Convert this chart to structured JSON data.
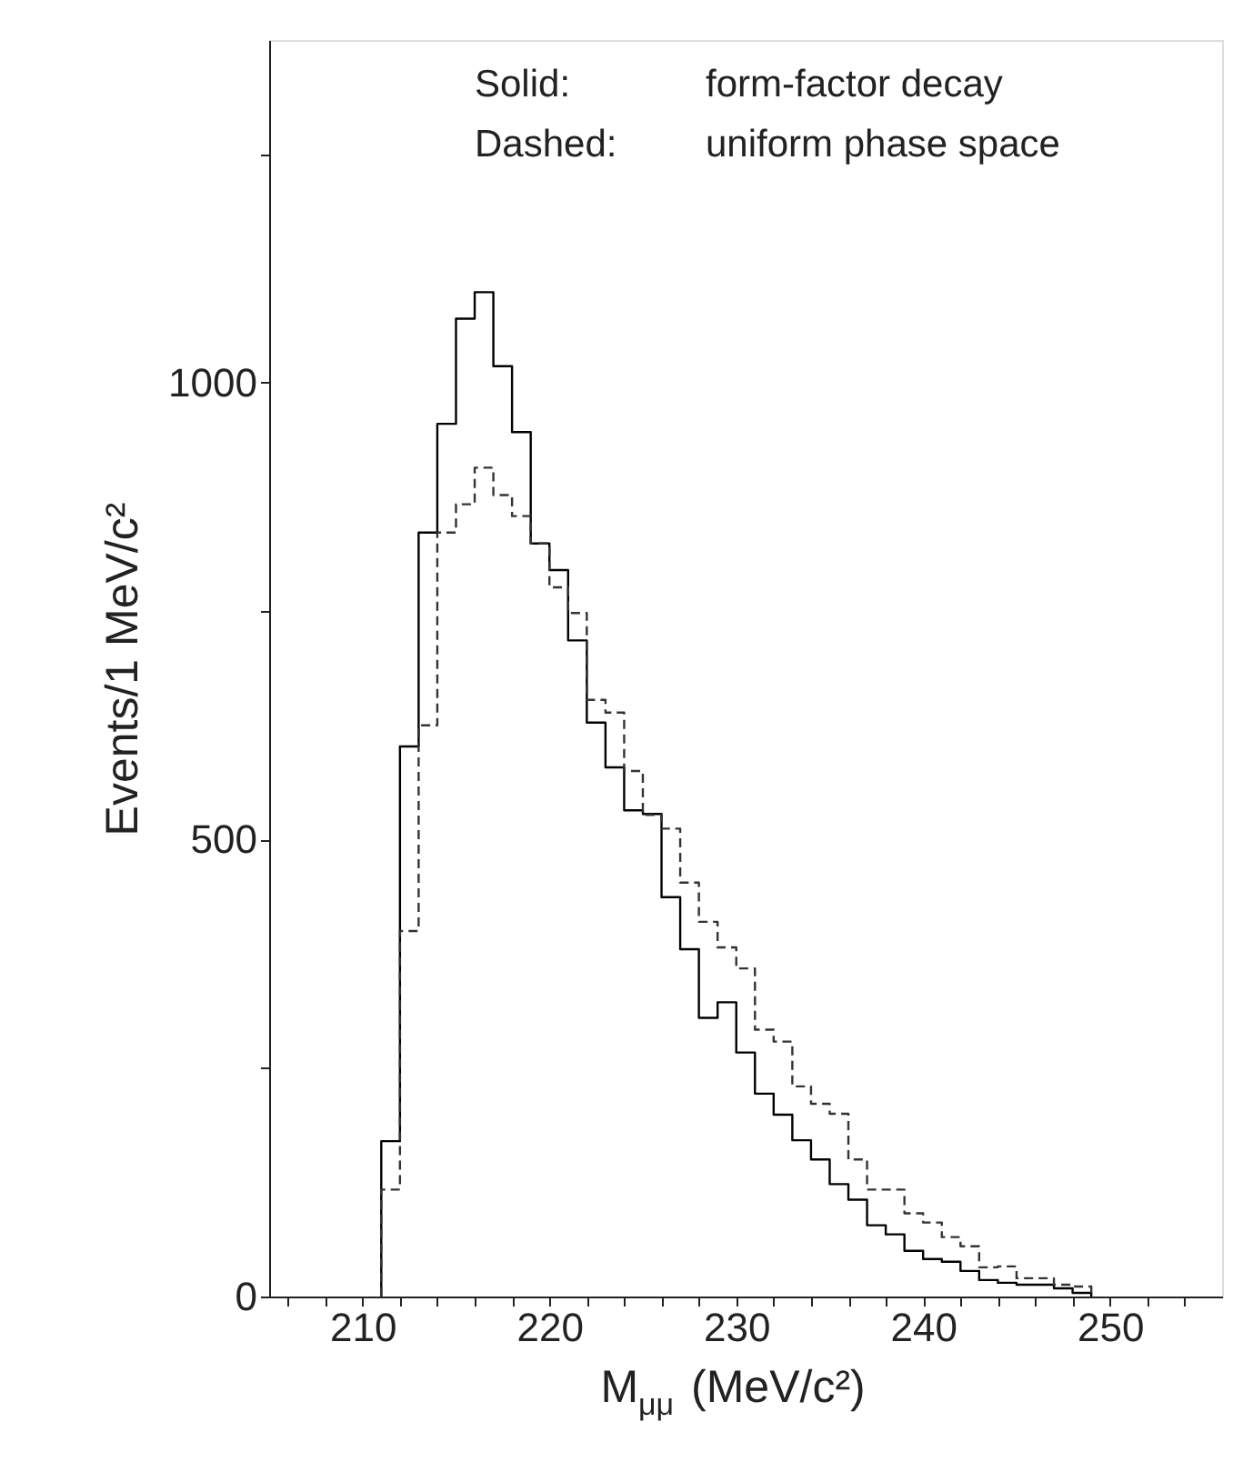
{
  "chart_data": {
    "type": "histogram",
    "xlabel": "M$_{μμ}$ (MeV/c²)",
    "ylabel": "Events/1 MeV/c²",
    "bins": [
      211,
      212,
      213,
      214,
      215,
      216,
      217,
      218,
      219,
      220,
      221,
      222,
      223,
      224,
      225,
      226,
      227,
      228,
      229,
      230,
      231,
      232,
      233,
      234,
      235,
      236,
      237,
      238,
      239,
      240,
      241,
      242,
      243,
      244,
      245,
      246,
      247,
      248,
      249
    ],
    "series": [
      {
        "color": "#000000",
        "line_style": "solid",
        "values": [
          170,
          602,
          836,
          955,
          1070,
          1099,
          1018,
          946,
          824,
          795,
          718,
          628,
          579,
          532,
          528,
          437,
          380,
          305,
          322,
          267,
          222,
          199,
          171,
          150,
          123,
          106,
          78,
          68,
          50,
          41,
          38,
          28,
          18,
          15,
          13,
          13,
          9,
          4
        ]
      },
      {
        "color": "#333333",
        "line_style": "dashed",
        "values": [
          117,
          400,
          625,
          836,
          867,
          907,
          877,
          854,
          824,
          776,
          748,
          653,
          639,
          575,
          527,
          512,
          453,
          410,
          382,
          359,
          292,
          279,
          230,
          211,
          200,
          150,
          117,
          117,
          91,
          81,
          65,
          55,
          32,
          33,
          20,
          20,
          13,
          11
        ]
      }
    ],
    "xlim": [
      205,
      256
    ],
    "xticks": [
      {
        "value": 206,
        "label": null
      },
      {
        "value": 208,
        "label": null
      },
      210,
      {
        "value": 212,
        "label": null
      },
      {
        "value": 214,
        "label": null
      },
      {
        "value": 216,
        "label": null
      },
      {
        "value": 218,
        "label": null
      },
      220,
      {
        "value": 222,
        "label": null
      },
      {
        "value": 224,
        "label": null
      },
      {
        "value": 226,
        "label": null
      },
      {
        "value": 228,
        "label": null
      },
      230,
      {
        "value": 232,
        "label": null
      },
      {
        "value": 234,
        "label": null
      },
      {
        "value": 236,
        "label": null
      },
      {
        "value": 238,
        "label": null
      },
      240,
      {
        "value": 242,
        "label": null
      },
      {
        "value": 244,
        "label": null
      },
      {
        "value": 246,
        "label": null
      },
      {
        "value": 248,
        "label": null
      },
      250,
      {
        "value": 252,
        "label": null
      },
      {
        "value": 254,
        "label": null
      }
    ],
    "ylim": [
      0,
      1375
    ],
    "yticks": [
      0,
      {
        "value": 250,
        "label": null
      },
      500,
      {
        "value": 750,
        "label": null
      },
      1000,
      {
        "value": 1250,
        "label": null
      }
    ],
    "annotations": [
      "Solid:",
      "form-factor decay",
      "Dashed:",
      "uniform phase space"
    ]
  }
}
